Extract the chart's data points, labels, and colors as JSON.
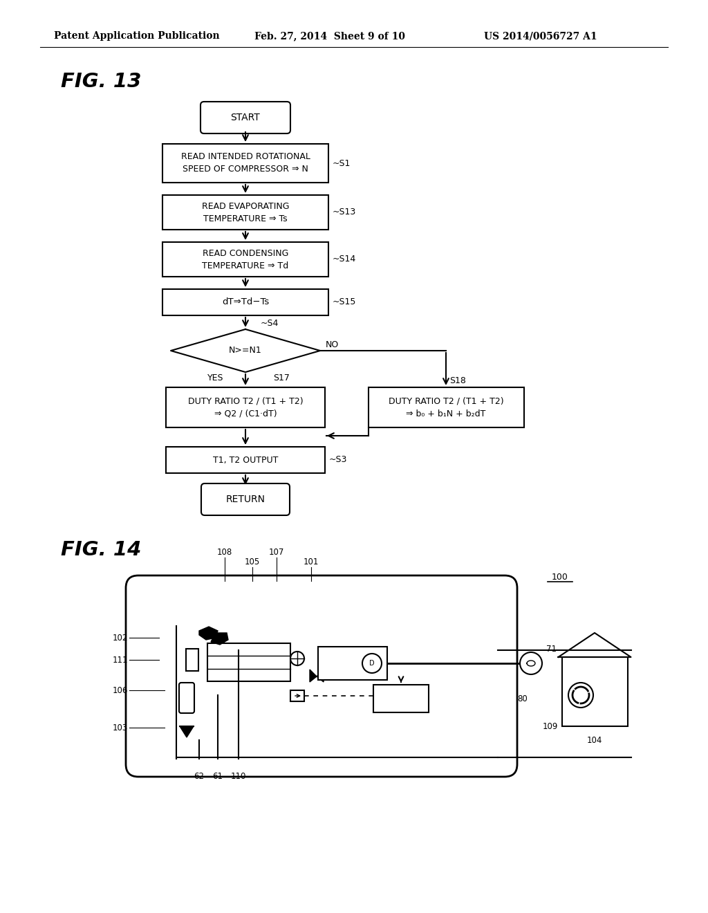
{
  "bg_color": "#ffffff",
  "header_left": "Patent Application Publication",
  "header_mid": "Feb. 27, 2014  Sheet 9 of 10",
  "header_right": "US 2014/0056727 A1",
  "fig13_label": "FIG. 13",
  "fig14_label": "FIG. 14",
  "start_text": "START",
  "return_text": "RETURN",
  "box1_text": "READ INTENDED ROTATIONAL\nSPEED OF COMPRESSOR ⇒ N",
  "label_S1": "~S1",
  "box2_text": "READ EVAPORATING\nTEMPERATURE ⇒ Ts",
  "label_S13": "~S13",
  "box3_text": "READ CONDENSING\nTEMPERATURE ⇒ Td",
  "label_S14": "~S14",
  "box4_text": "dT⇒Td−Ts",
  "label_S15": "~S15",
  "diamond_text": "N>=N1",
  "label_S4": "~S4",
  "yes_text": "YES",
  "no_text": "NO",
  "label_S17": "S17",
  "label_S18": "S18",
  "left_box_line1": "DUTY RATIO T2 / (T1 + T2)",
  "left_box_line2": "⇒ Q2 / (C1·dT)",
  "right_box_line1": "DUTY RATIO T2 / (T1 + T2)",
  "right_box_line2": "⇒ b₀ + b₁N + b₂dT",
  "output_text": "T1, T2 OUTPUT",
  "label_S3": "~S3",
  "num_100": "100",
  "num_101": "101",
  "num_102": "102",
  "num_103": "103",
  "num_104": "104",
  "num_105": "105",
  "num_106": "106",
  "num_107": "107",
  "num_108": "108",
  "num_109": "109",
  "num_110": "110",
  "num_111": "111",
  "num_61": "61",
  "num_62": "62",
  "num_71": "71",
  "num_80": "80"
}
